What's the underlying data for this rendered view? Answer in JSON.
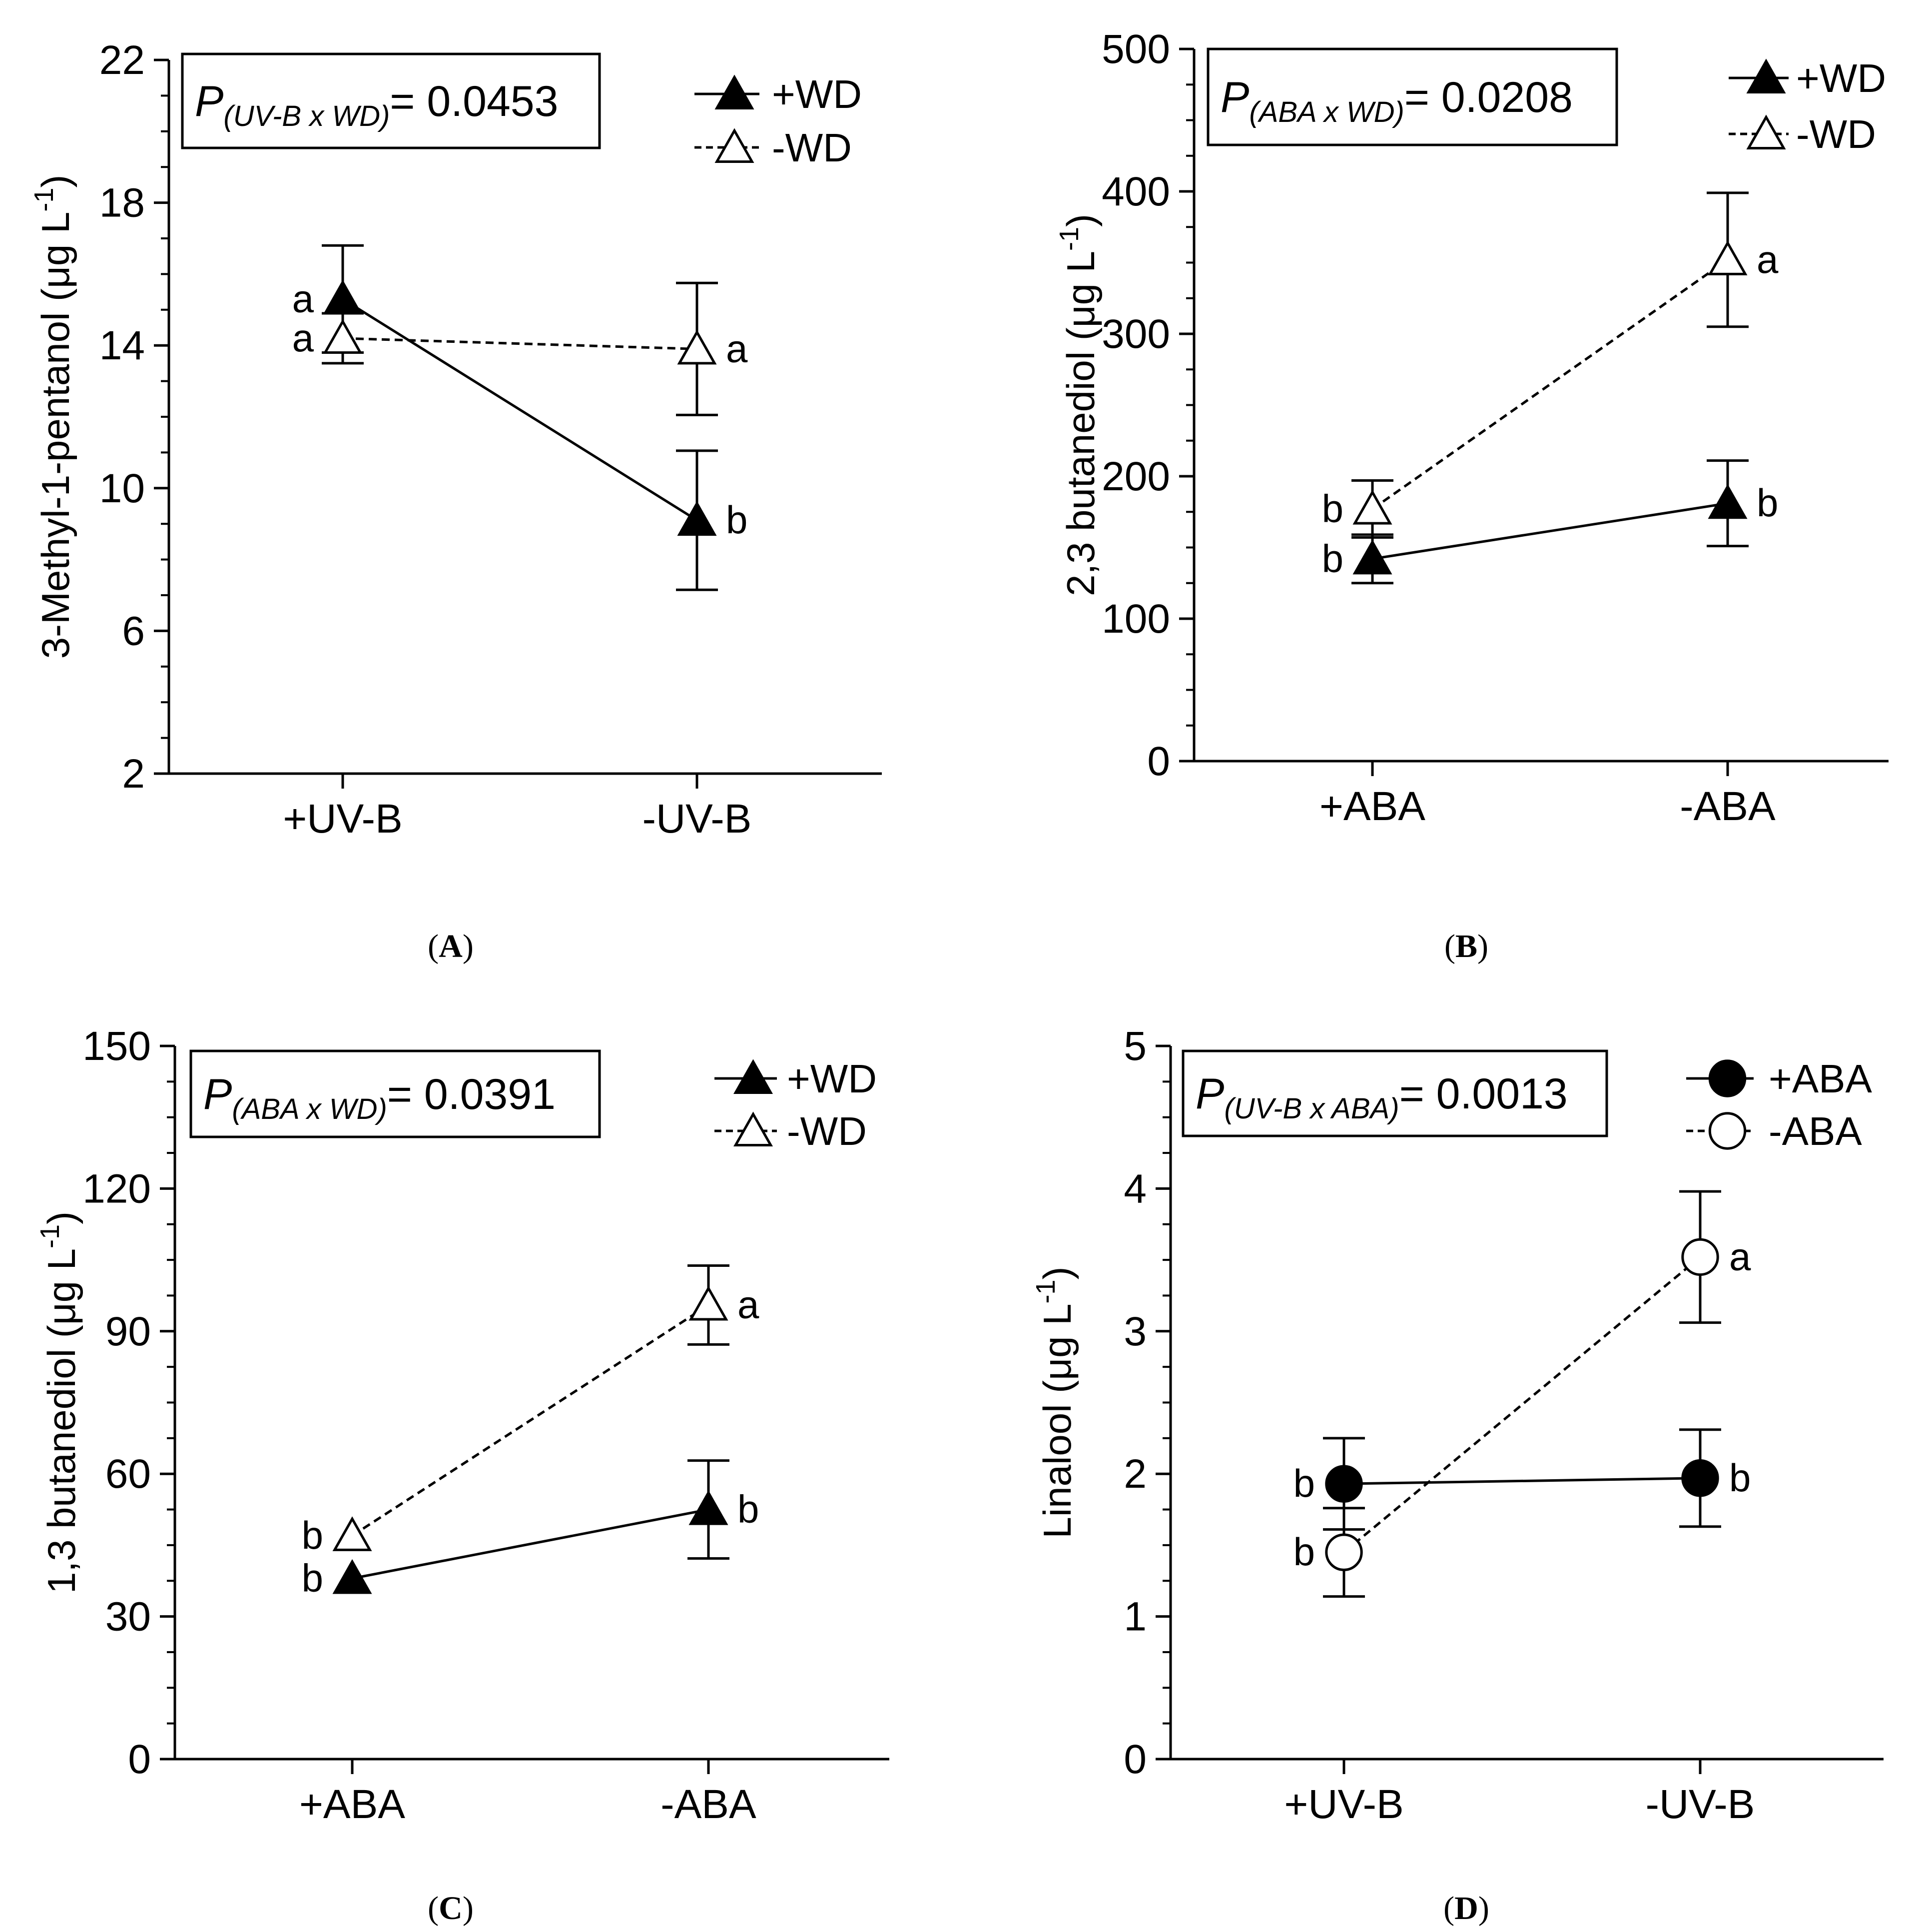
{
  "figure": {
    "colors": {
      "ink": "#000000",
      "background": "#ffffff",
      "open_fill": "#ffffff"
    }
  },
  "chart_data": [
    {
      "panel_label": "A",
      "type": "line",
      "ylabel": "3-Methyl-1-pentanol (μg L⁻¹)",
      "ylabel_main": "3-Methyl-1-pentanol (μg L",
      "ylabel_sup": "-1",
      "ylabel_close": ")",
      "categories": [
        "+UV-B",
        "-UV-B"
      ],
      "ylim": [
        2,
        22
      ],
      "yticks": [
        2,
        6,
        10,
        14,
        18,
        22
      ],
      "ytick_labels": [
        "2",
        "6",
        "10",
        "14",
        "18",
        "22"
      ],
      "minor_ticks": 3,
      "grid": false,
      "annotation": {
        "prefix": "P",
        "subscript": "(UV-B x WD)",
        "text": "= 0.0453"
      },
      "legend_position": "top-right",
      "series": [
        {
          "name": "+WD",
          "marker": "triangle",
          "filled": true,
          "line": "solid",
          "values": [
            15.3,
            9.1
          ],
          "errors": [
            1.5,
            1.95
          ],
          "letters": [
            "a",
            "b"
          ]
        },
        {
          "name": "-WD",
          "marker": "triangle",
          "filled": false,
          "line": "dashed",
          "values": [
            14.2,
            13.9
          ],
          "errors": [
            0.7,
            1.85
          ],
          "letters": [
            "a",
            "a"
          ]
        }
      ]
    },
    {
      "panel_label": "B",
      "type": "line",
      "ylabel": "2,3 butanediol (μg L⁻¹)",
      "ylabel_main": "2,3 butanediol (μg L",
      "ylabel_sup": "-1",
      "ylabel_close": ")",
      "categories": [
        "+ABA",
        "-ABA"
      ],
      "ylim": [
        0,
        500
      ],
      "yticks": [
        0,
        100,
        200,
        300,
        400,
        500
      ],
      "ytick_labels": [
        "0",
        "100",
        "200",
        "300",
        "400",
        "500"
      ],
      "minor_ticks": 3,
      "grid": false,
      "annotation": {
        "prefix": "P",
        "subscript": "(ABA x WD)",
        "text": "= 0.0208"
      },
      "legend_position": "top-right",
      "series": [
        {
          "name": "+WD",
          "marker": "triangle",
          "filled": true,
          "line": "solid",
          "values": [
            142,
            181
          ],
          "errors": [
            17,
            30
          ],
          "letters": [
            "b",
            "b"
          ]
        },
        {
          "name": "-WD",
          "marker": "triangle",
          "filled": false,
          "line": "dashed",
          "values": [
            177,
            352
          ],
          "errors": [
            20,
            47
          ],
          "letters": [
            "b",
            "a"
          ]
        }
      ]
    },
    {
      "panel_label": "C",
      "type": "line",
      "ylabel": "1,3 butanediol (μg L⁻¹)",
      "ylabel_main": "1,3 butanediol (μg L",
      "ylabel_sup": "-1",
      "ylabel_close": ")",
      "categories": [
        "+ABA",
        "-ABA"
      ],
      "ylim": [
        0,
        150
      ],
      "yticks": [
        0,
        30,
        60,
        90,
        120,
        150
      ],
      "ytick_labels": [
        "0",
        "30",
        "60",
        "90",
        "120",
        "150"
      ],
      "minor_ticks": 3,
      "grid": false,
      "annotation": {
        "prefix": "P",
        "subscript": "(ABA x WD)",
        "text": "= 0.0391"
      },
      "legend_position": "top-right",
      "series": [
        {
          "name": "+WD",
          "marker": "triangle",
          "filled": true,
          "line": "solid",
          "values": [
            38,
            52.5
          ],
          "errors": [
            0,
            10.3
          ],
          "letters": [
            "b",
            "b"
          ]
        },
        {
          "name": "-WD",
          "marker": "triangle",
          "filled": false,
          "line": "dashed",
          "values": [
            47,
            95.5
          ],
          "errors": [
            0,
            8.3
          ],
          "letters": [
            "b",
            "a"
          ]
        }
      ]
    },
    {
      "panel_label": "D",
      "type": "line",
      "ylabel": "Linalool (μg L⁻¹)",
      "ylabel_main": "Linalool (μg L",
      "ylabel_sup": "-1",
      "ylabel_close": ")",
      "categories": [
        "+UV-B",
        "-UV-B"
      ],
      "ylim": [
        0,
        5
      ],
      "yticks": [
        0,
        1,
        2,
        3,
        4,
        5
      ],
      "ytick_labels": [
        "0",
        "1",
        "2",
        "3",
        "4",
        "5"
      ],
      "minor_ticks": 3,
      "grid": false,
      "annotation": {
        "prefix": "P",
        "subscript": "(UV-B x ABA)",
        "text": "= 0.0013"
      },
      "legend_position": "top-right",
      "series": [
        {
          "name": "+ABA",
          "marker": "circle",
          "filled": true,
          "line": "solid",
          "values": [
            1.93,
            1.97
          ],
          "errors": [
            0.32,
            0.34
          ],
          "letters": [
            "b",
            "b"
          ]
        },
        {
          "name": "-ABA",
          "marker": "circle",
          "filled": false,
          "line": "dashed",
          "values": [
            1.45,
            3.52
          ],
          "errors": [
            0.31,
            0.46
          ],
          "letters": [
            "b",
            "a"
          ]
        }
      ]
    }
  ]
}
